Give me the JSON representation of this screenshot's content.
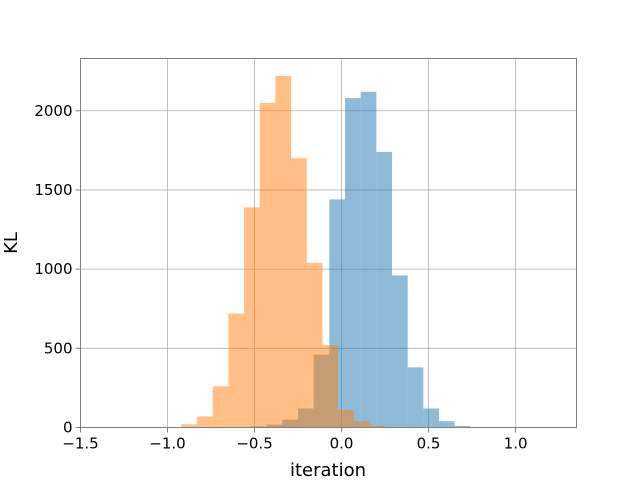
{
  "chart_data": {
    "type": "bar",
    "title": "",
    "xlabel": "iteration",
    "ylabel": "KL",
    "xlim": [
      -1.5,
      1.35
    ],
    "ylim": [
      0,
      2330
    ],
    "xticks": [
      -1.5,
      -1.0,
      -0.5,
      0.0,
      0.5,
      1.0
    ],
    "xtick_labels": [
      "−1.5",
      "−1.0",
      "−0.5",
      "0.0",
      "0.5",
      "1.0"
    ],
    "yticks": [
      0,
      500,
      1000,
      1500,
      2000
    ],
    "ytick_labels": [
      "0",
      "500",
      "1000",
      "1500",
      "2000"
    ],
    "grid": true,
    "series": [
      {
        "color": "#1f77b4",
        "opacity": 0.5,
        "bin_edges": [
          -0.61,
          -0.52,
          -0.43,
          -0.34,
          -0.25,
          -0.16,
          -0.07,
          0.02,
          0.11,
          0.2,
          0.29,
          0.38,
          0.47,
          0.56,
          0.65,
          0.74
        ],
        "counts": [
          3,
          8,
          18,
          50,
          120,
          460,
          1440,
          2080,
          2120,
          1740,
          960,
          380,
          120,
          40,
          10
        ]
      },
      {
        "color": "#ff7f0e",
        "opacity": 0.5,
        "bin_edges": [
          -0.92,
          -0.83,
          -0.74,
          -0.65,
          -0.56,
          -0.47,
          -0.38,
          -0.29,
          -0.2,
          -0.11,
          -0.02,
          0.07,
          0.16,
          0.25,
          0.34
        ],
        "counts": [
          20,
          70,
          260,
          720,
          1390,
          2050,
          2220,
          1700,
          1040,
          520,
          110,
          40,
          12,
          3
        ]
      }
    ]
  }
}
